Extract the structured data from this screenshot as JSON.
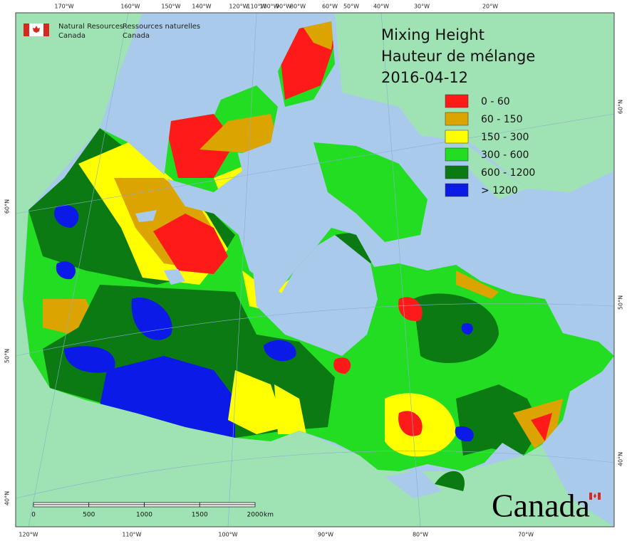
{
  "header": {
    "org_en_line1": "Natural Resources",
    "org_en_line2": "Canada",
    "org_fr_line1": "Ressources naturelles",
    "org_fr_line2": "Canada"
  },
  "title": {
    "line1": "Mixing Height",
    "line2": "Hauteur de mélange",
    "date": "2016-04-12"
  },
  "legend": [
    {
      "label": "0 - 60",
      "color": "#ff1a1a"
    },
    {
      "label": "60 - 150",
      "color": "#dba400"
    },
    {
      "label": "150 - 300",
      "color": "#ffff00"
    },
    {
      "label": "300 - 600",
      "color": "#22dd22"
    },
    {
      "label": "600 - 1200",
      "color": "#0b7a12"
    },
    {
      "label": "> 1200",
      "color": "#0b1ae6"
    }
  ],
  "graticule": {
    "top": [
      "170°W",
      "160°W",
      "150°W",
      "140°W",
      "120°W",
      "110°W",
      "100°W",
      "90°W",
      "80°W",
      "60°W",
      "50°W",
      "40°W",
      "30°W",
      "20°W"
    ],
    "bottom": [
      "120°W",
      "110°W",
      "100°W",
      "90°W",
      "80°W",
      "70°W"
    ],
    "left": [
      "60°N",
      "50°N",
      "40°N"
    ],
    "right": [
      "60°N",
      "50°N",
      "40°N"
    ]
  },
  "scale_bar": {
    "labels": [
      "0",
      "500",
      "1000",
      "1500",
      "2000"
    ],
    "unit": "km"
  },
  "wordmark": "Canada"
}
